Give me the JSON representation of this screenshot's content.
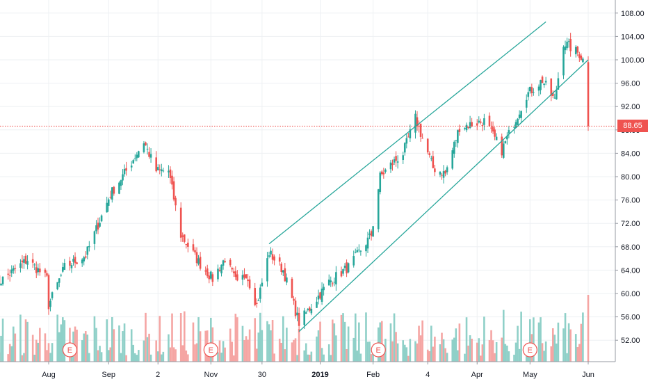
{
  "chart_data": {
    "type": "candlestick",
    "y_axis": {
      "range": [
        48,
        110
      ],
      "ticks": [
        "52.00",
        "56.00",
        "60.00",
        "64.00",
        "68.00",
        "72.00",
        "76.00",
        "80.00",
        "84.00",
        "88.00",
        "92.00",
        "96.00",
        "100.00",
        "104.00",
        "108.00"
      ]
    },
    "x_axis": {
      "ticks": [
        "Aug",
        "Sep",
        "2",
        "Nov",
        "30",
        "2019",
        "Feb",
        "4",
        "Apr",
        "May",
        "Jun"
      ],
      "emphasized": "2019"
    },
    "last_price": {
      "value": 88.65,
      "label": "88.65"
    },
    "earnings_markers": [
      "E",
      "E",
      "E",
      "E"
    ],
    "trend_channel": {
      "upper": [
        [
          "2018-12-04",
          68.5
        ],
        [
          "2019-05-10",
          106.5
        ]
      ],
      "lower": [
        [
          "2018-12-21",
          53.5
        ],
        [
          "2019-06-03",
          100.0
        ]
      ]
    },
    "price_path": [
      [
        "2018-07-02",
        61.5
      ],
      [
        "2018-07-20",
        65.8
      ],
      [
        "2018-07-31",
        62.5
      ],
      [
        "2018-08-01",
        58.0
      ],
      [
        "2018-08-10",
        64.5
      ],
      [
        "2018-08-22",
        66.5
      ],
      [
        "2018-09-05",
        77.0
      ],
      [
        "2018-09-14",
        81.0
      ],
      [
        "2018-09-24",
        86.0
      ],
      [
        "2018-10-01",
        81.0
      ],
      [
        "2018-10-08",
        81.0
      ],
      [
        "2018-10-15",
        70.0
      ],
      [
        "2018-10-26",
        65.0
      ],
      [
        "2018-11-02",
        62.5
      ],
      [
        "2018-11-09",
        66.0
      ],
      [
        "2018-11-16",
        61.5
      ],
      [
        "2018-11-21",
        63.5
      ],
      [
        "2018-11-27",
        58.0
      ],
      [
        "2018-12-04",
        67.0
      ],
      [
        "2018-12-12",
        64.0
      ],
      [
        "2018-12-21",
        55.0
      ],
      [
        "2019-01-07",
        62.0
      ],
      [
        "2019-01-18",
        64.5
      ],
      [
        "2019-01-31",
        70.0
      ],
      [
        "2019-02-05",
        80.0
      ],
      [
        "2019-02-11",
        82.0
      ],
      [
        "2019-02-18",
        84.0
      ],
      [
        "2019-02-25",
        90.0
      ],
      [
        "2019-03-07",
        81.5
      ],
      [
        "2019-03-14",
        80.5
      ],
      [
        "2019-03-22",
        88.5
      ],
      [
        "2019-03-29",
        89.0
      ],
      [
        "2019-04-05",
        89.5
      ],
      [
        "2019-04-15",
        84.5
      ],
      [
        "2019-04-23",
        90.0
      ],
      [
        "2019-04-29",
        94.0
      ],
      [
        "2019-05-08",
        96.5
      ],
      [
        "2019-05-15",
        93.0
      ],
      [
        "2019-05-20",
        103.0
      ],
      [
        "2019-05-29",
        101.0
      ],
      [
        "2019-05-31",
        100.0
      ],
      [
        "2019-06-03",
        88.65
      ]
    ]
  }
}
